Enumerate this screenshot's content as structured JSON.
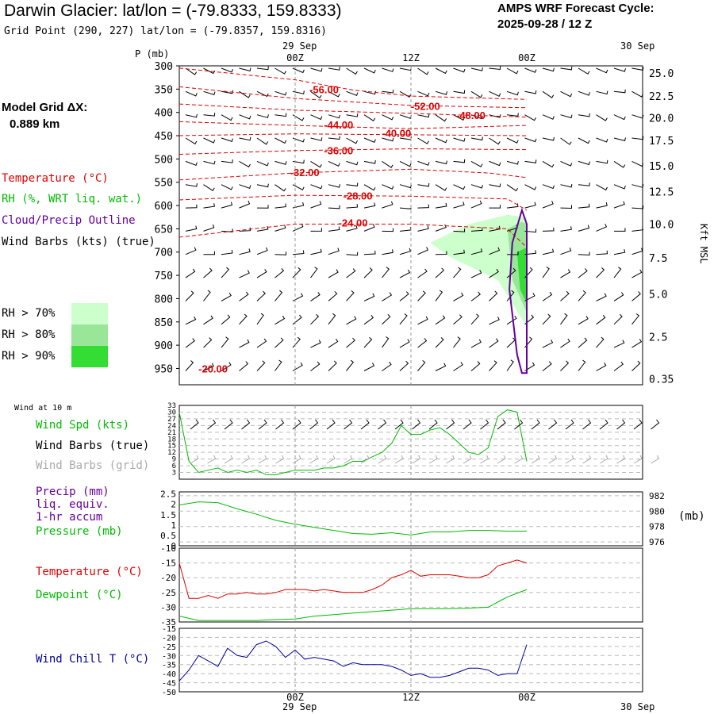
{
  "header": {
    "title": "Darwin Glacier:  lat/lon = (-79.8333, 159.8333)",
    "grid_point": "Grid Point (290, 227) lat/lon = (-79.8357, 159.8316)",
    "cycle_label": "AMPS WRF Forecast Cycle:",
    "cycle_value": "2025-09-28 / 12  Z"
  },
  "model_grid": {
    "label": "Model Grid ΔX:",
    "value": "0.889 km"
  },
  "legend": {
    "temperature": "Temperature (°C)",
    "rh": "RH (%, WRT liq. wat.)",
    "cloud": "Cloud/Precip Outline",
    "wind_barbs": "Wind Barbs (kts) (true)",
    "rh_levels": [
      {
        "label": "RH > 70%",
        "color": "#ccffcc"
      },
      {
        "label": "RH > 80%",
        "color": "#99e699"
      },
      {
        "label": "RH > 90%",
        "color": "#33dd33"
      }
    ]
  },
  "colors": {
    "temperature": "#dd0000",
    "wind_speed": "#00bb00",
    "cloud": "#660099",
    "grid_barbs": "#aaaaaa",
    "wind_chill": "#000099",
    "dewpoint": "#00bb00"
  },
  "chart_data": [
    {
      "type": "heatmap",
      "name": "cross-section",
      "yaxis_title": "P (mb)",
      "pressure_levels": [
        300,
        350,
        400,
        450,
        500,
        550,
        600,
        650,
        700,
        750,
        800,
        850,
        900,
        950
      ],
      "right_axis_title": "Kft MSL",
      "height_ticks": [
        "25.0",
        "22.5",
        "20.0",
        "17.5",
        "15.0",
        "12.5",
        "10.0",
        "7.5",
        "5.0",
        "2.5",
        "0.35"
      ],
      "height_tick_pressure": [
        315,
        365,
        412,
        460,
        515,
        570,
        640,
        712,
        790,
        882,
        972
      ],
      "x_range_hours": [
        -12,
        36
      ],
      "top_date_labels": [
        "29 Sep",
        "30 Sep"
      ],
      "time_ticks": [
        {
          "hour": 0,
          "label": "00Z"
        },
        {
          "hour": 12,
          "label": "12Z"
        },
        {
          "hour": 24,
          "label": "00Z"
        }
      ],
      "isotherms": [
        {
          "label": "-56.00",
          "label_hour": 3,
          "label_p": 352,
          "points": [
            [
              -12,
              305
            ],
            [
              0,
              330
            ],
            [
              6,
              352
            ],
            [
              12,
              365
            ],
            [
              24,
              372
            ]
          ]
        },
        {
          "label": "-52.00",
          "label_hour": 13.5,
          "label_p": 388,
          "points": [
            [
              -12,
              345
            ],
            [
              0,
              370
            ],
            [
              12,
              385
            ],
            [
              24,
              390
            ]
          ]
        },
        {
          "label": "-48.00",
          "label_hour": 18.2,
          "label_p": 407,
          "points": [
            [
              -12,
              382
            ],
            [
              0,
              395
            ],
            [
              12,
              402
            ],
            [
              24,
              410
            ]
          ]
        },
        {
          "label": "-44.00",
          "label_hour": 4.5,
          "label_p": 428,
          "points": [
            [
              -12,
              420
            ],
            [
              0,
              428
            ],
            [
              12,
              435
            ],
            [
              24,
              428
            ]
          ]
        },
        {
          "label": "-40.00",
          "label_hour": 10.5,
          "label_p": 446,
          "points": [
            [
              -12,
              450
            ],
            [
              0,
              446
            ],
            [
              12,
              448
            ],
            [
              24,
              450
            ]
          ]
        },
        {
          "label": "-36.00",
          "label_hour": 4.5,
          "label_p": 483,
          "points": [
            [
              -12,
              490
            ],
            [
              0,
              482
            ],
            [
              12,
              478
            ],
            [
              24,
              480
            ]
          ]
        },
        {
          "label": "-32.00",
          "label_hour": 1.0,
          "label_p": 530,
          "points": [
            [
              -12,
              545
            ],
            [
              0,
              530
            ],
            [
              12,
              522
            ],
            [
              20,
              530
            ],
            [
              24,
              540
            ]
          ]
        },
        {
          "label": "-28.00",
          "label_hour": 6.5,
          "label_p": 580,
          "points": [
            [
              -12,
              588
            ],
            [
              0,
              578
            ],
            [
              12,
              580
            ],
            [
              22,
              586
            ],
            [
              24,
              610
            ]
          ]
        },
        {
          "label": "-24.00",
          "label_hour": 6.0,
          "label_p": 638,
          "points": [
            [
              -12,
              668
            ],
            [
              0,
              640
            ],
            [
              12,
              640
            ],
            [
              22,
              650
            ],
            [
              24,
              690
            ]
          ]
        }
      ],
      "rh_regions": [
        {
          "level": 70,
          "points": [
            [
              14,
              680
            ],
            [
              18,
              640
            ],
            [
              22,
              620
            ],
            [
              24,
              625
            ],
            [
              24,
              860
            ],
            [
              21,
              760
            ],
            [
              16,
              710
            ]
          ]
        },
        {
          "level": 80,
          "points": [
            [
              22,
              650
            ],
            [
              23.5,
              635
            ],
            [
              24,
              640
            ],
            [
              24,
              830
            ],
            [
              22.5,
              760
            ]
          ]
        },
        {
          "level": 90,
          "points": [
            [
              23,
              700
            ],
            [
              24,
              690
            ],
            [
              24,
              810
            ],
            [
              23.3,
              780
            ]
          ]
        }
      ],
      "cloud_outline": [
        [
          23,
          920
        ],
        [
          22.2,
          780
        ],
        [
          22.5,
          680
        ],
        [
          23.5,
          610
        ],
        [
          24,
          640
        ],
        [
          24,
          960
        ],
        [
          23.5,
          960
        ]
      ],
      "extra_label": {
        "text": "-20.00",
        "hour": -8.5,
        "p": 952
      }
    },
    {
      "type": "line",
      "name": "wind-10m",
      "title": "Wind at 10 m",
      "labels": [
        "Wind Spd (kts)",
        "Wind Barbs (true)",
        "Wind Barbs (grid)"
      ],
      "yticks": [
        33,
        30,
        27,
        24,
        21,
        18,
        15,
        12,
        9,
        6,
        3
      ],
      "ylim": [
        0,
        33
      ],
      "series": [
        {
          "name": "Wind Spd (kts)",
          "x": [
            -12,
            -11,
            -10,
            -9,
            -8,
            -7,
            -6,
            -5,
            -4,
            -3,
            -2,
            -1,
            0,
            1,
            2,
            3,
            4,
            5,
            6,
            7,
            8,
            9,
            10,
            11,
            12,
            13,
            14,
            15,
            16,
            17,
            18,
            19,
            20,
            21,
            22,
            23,
            24
          ],
          "values": [
            30,
            8,
            3,
            4,
            5,
            3,
            4,
            3,
            4,
            2,
            2,
            3,
            4,
            4,
            4,
            5,
            5,
            6,
            8,
            8,
            10,
            12,
            16,
            24,
            20,
            20,
            22,
            23,
            20,
            16,
            12,
            11,
            14,
            28,
            31,
            30,
            8
          ]
        }
      ]
    },
    {
      "type": "line",
      "name": "precip-pressure",
      "labels": [
        "Precip (mm)",
        "liq. equiv.",
        "1-hr accum",
        "Pressure (mb)"
      ],
      "left_ticks": [
        "2.5",
        "2",
        "1.5",
        "1",
        "0.5",
        "0"
      ],
      "right_ticks": [
        "982",
        "980",
        "978",
        "976"
      ],
      "right_unit": "(mb)",
      "ylim_mb": [
        975.5,
        982.5
      ],
      "series": [
        {
          "name": "Pressure (mb)",
          "x": [
            -12,
            -10,
            -8,
            -6,
            -4,
            -2,
            0,
            2,
            4,
            6,
            8,
            10,
            12,
            14,
            16,
            18,
            20,
            22,
            24
          ],
          "values": [
            980.8,
            981.2,
            981.1,
            980.3,
            979.6,
            978.8,
            978.3,
            977.9,
            977.5,
            977.1,
            977.0,
            977.2,
            976.9,
            977.3,
            977.3,
            977.5,
            977.5,
            977.4,
            977.4
          ]
        }
      ]
    },
    {
      "type": "line",
      "name": "temperature-dewpoint",
      "labels": [
        "Temperature (°C)",
        "Dewpoint (°C)"
      ],
      "yticks": [
        -10,
        -15,
        -20,
        -25,
        -30,
        -35
      ],
      "ylim": [
        -35,
        -10
      ],
      "series": [
        {
          "name": "Temperature (°C)",
          "x": [
            -12,
            -11,
            -10,
            -9,
            -8,
            -7,
            -6,
            -5,
            -4,
            -3,
            -2,
            -1,
            0,
            1,
            2,
            3,
            4,
            5,
            6,
            7,
            8,
            9,
            10,
            11,
            12,
            13,
            14,
            15,
            16,
            17,
            18,
            19,
            20,
            21,
            22,
            23,
            24
          ],
          "values": [
            -15,
            -27,
            -27,
            -26,
            -27,
            -25.5,
            -25.5,
            -25,
            -25.5,
            -25.5,
            -25,
            -24,
            -24,
            -24,
            -24.5,
            -24,
            -24.5,
            -25,
            -25,
            -25,
            -24,
            -22.5,
            -20,
            -19,
            -17.5,
            -19.5,
            -19,
            -19,
            -19,
            -19.5,
            -20,
            -20,
            -19,
            -16,
            -15,
            -14,
            -15
          ]
        },
        {
          "name": "Dewpoint (°C)",
          "x": [
            -12,
            -10,
            -8,
            -6,
            -4,
            -2,
            0,
            2,
            4,
            6,
            8,
            10,
            12,
            14,
            16,
            18,
            20,
            22,
            24
          ],
          "values": [
            -33,
            -34.5,
            -34.5,
            -34.5,
            -34.5,
            -34.2,
            -34,
            -33,
            -32.5,
            -32,
            -31.5,
            -31,
            -30.5,
            -30.5,
            -30.5,
            -30.3,
            -30,
            -26.5,
            -24
          ]
        }
      ]
    },
    {
      "type": "line",
      "name": "wind-chill",
      "labels": [
        "Wind Chill T (°C)"
      ],
      "yticks": [
        -15,
        -20,
        -25,
        -30,
        -35,
        -40,
        -45,
        -50
      ],
      "ylim": [
        -50,
        -15
      ],
      "series": [
        {
          "name": "Wind Chill T (°C)",
          "x": [
            -12,
            -11,
            -10,
            -9,
            -8,
            -7,
            -6,
            -5,
            -4,
            -3,
            -2,
            -1,
            0,
            1,
            2,
            3,
            4,
            5,
            6,
            7,
            8,
            9,
            10,
            11,
            12,
            13,
            14,
            15,
            16,
            17,
            18,
            19,
            20,
            21,
            22,
            23,
            24
          ],
          "values": [
            -44,
            -38,
            -30,
            -33,
            -36,
            -26,
            -30,
            -31,
            -24,
            -22,
            -25,
            -31,
            -27,
            -32,
            -31,
            -32,
            -33,
            -36,
            -34,
            -35,
            -35,
            -35,
            -36,
            -38,
            -41,
            -40,
            -42,
            -42,
            -41,
            -39,
            -37,
            -37,
            -38,
            -41,
            -40,
            -40,
            -24
          ]
        }
      ]
    }
  ],
  "bottom_axis": {
    "labels": [
      "00Z",
      "12Z",
      "00Z"
    ],
    "dates": [
      "29 Sep",
      "30 Sep"
    ]
  }
}
